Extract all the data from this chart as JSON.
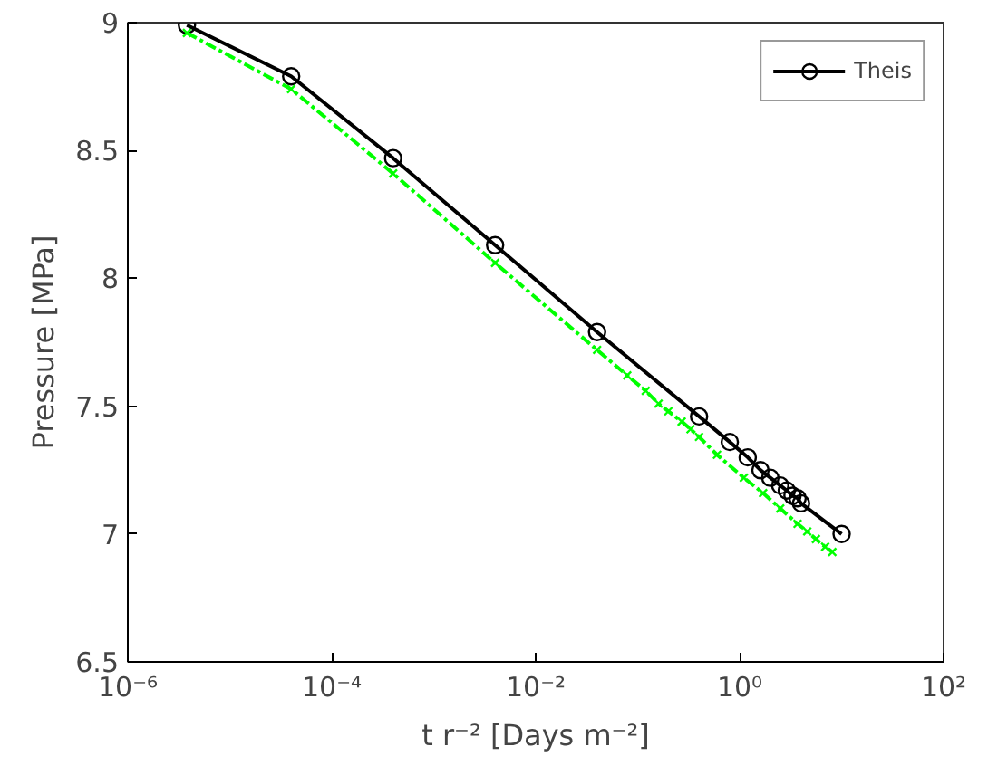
{
  "chart_data": {
    "type": "line",
    "xlabel": "t r⁻² [Days m⁻²]",
    "ylabel": "Pressure [MPa]",
    "log": "x",
    "grid": false,
    "legend": "top right",
    "xlim": [
      1e-06,
      100
    ],
    "xticks": [
      {
        "value": 1e-06,
        "label": "10⁻⁶"
      },
      {
        "value": 0.0001,
        "label": "10⁻⁴"
      },
      {
        "value": 0.01,
        "label": "10⁻²"
      },
      {
        "value": 1,
        "label": "10⁰"
      },
      {
        "value": 100,
        "label": "10²"
      }
    ],
    "ylim": [
      6.5,
      9
    ],
    "yticks": [
      6.5,
      7,
      7.5,
      8,
      8.5,
      9
    ],
    "series": [
      {
        "name": "Theis",
        "color": "#000000",
        "marker": "circle",
        "line_style": "solid",
        "x": [
          3.8e-06,
          4e-05,
          0.0004,
          0.004,
          0.04,
          0.4,
          0.8,
          1.2,
          1.6,
          2.0,
          2.5,
          2.9,
          3.3,
          3.7,
          4.0,
          10
        ],
        "values": [
          8.99,
          8.79,
          8.47,
          8.13,
          7.79,
          7.46,
          7.36,
          7.3,
          7.25,
          7.22,
          7.19,
          7.17,
          7.15,
          7.14,
          7.12,
          7.0
        ]
      },
      {
        "color": "#00ff00",
        "marker": "cross",
        "line_style": "dashed",
        "x": [
          3.8e-06,
          4e-05,
          0.0004,
          0.004,
          0.04,
          0.079,
          0.12,
          0.16,
          0.2,
          0.27,
          0.33,
          0.4,
          0.6,
          1.1,
          1.7,
          2.5,
          3.7,
          4.6,
          5.6,
          6.9,
          8.1
        ],
        "values": [
          8.96,
          8.74,
          8.41,
          8.06,
          7.72,
          7.62,
          7.56,
          7.51,
          7.48,
          7.44,
          7.41,
          7.38,
          7.31,
          7.22,
          7.16,
          7.1,
          7.04,
          7.01,
          6.98,
          6.95,
          6.93
        ]
      }
    ]
  }
}
